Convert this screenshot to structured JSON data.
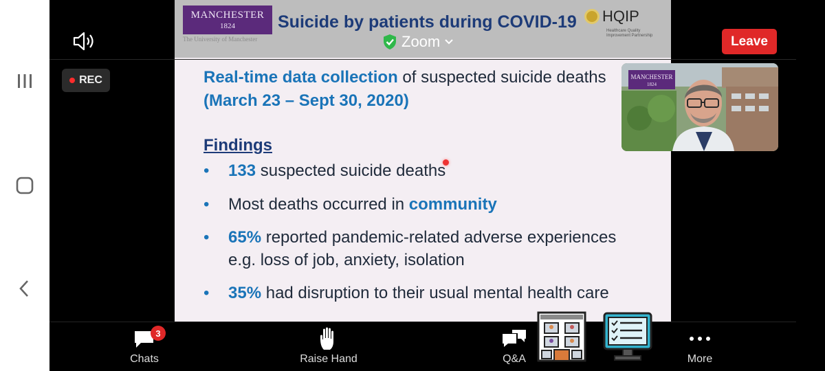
{
  "meeting": {
    "title": "Zoom",
    "leave_label": "Leave",
    "rec_label": "REC"
  },
  "slide": {
    "title": "Suicide by patients during COVID-19",
    "uom_logo": {
      "name": "MANCHESTER",
      "year": "1824",
      "sub": "The University of Manchester"
    },
    "hqip": {
      "word": "HQIP",
      "tagline": "Healthcare Quality Improvement Partnership"
    },
    "intro_highlight": "Real-time data collection",
    "intro_rest": " of suspected suicide deaths",
    "dates": "(March 23 – Sept 30, 2020)",
    "findings_heading": "Findings",
    "bullets": [
      {
        "highlight": "133",
        "text": " suspected suicide deaths"
      },
      {
        "pre": "Most deaths occurred in ",
        "highlight": "community"
      },
      {
        "highlight": "65%",
        "text": " reported pandemic-related adverse experiences",
        "line2": "e.g. loss of job, anxiety, isolation"
      },
      {
        "highlight": "35%",
        "text": " had disruption to their usual mental health care"
      }
    ]
  },
  "video": {
    "logo_name": "MANCHESTER",
    "logo_year": "1824"
  },
  "toolbar": {
    "chats_label": "Chats",
    "chats_count": "3",
    "raise_hand_label": "Raise Hand",
    "qa_label": "Q&A",
    "more_label": "More"
  },
  "colors": {
    "leave": "#e02828",
    "slide_title": "#1d3b78",
    "highlight": "#1a74b8",
    "uom_purple": "#5b2a7b"
  }
}
